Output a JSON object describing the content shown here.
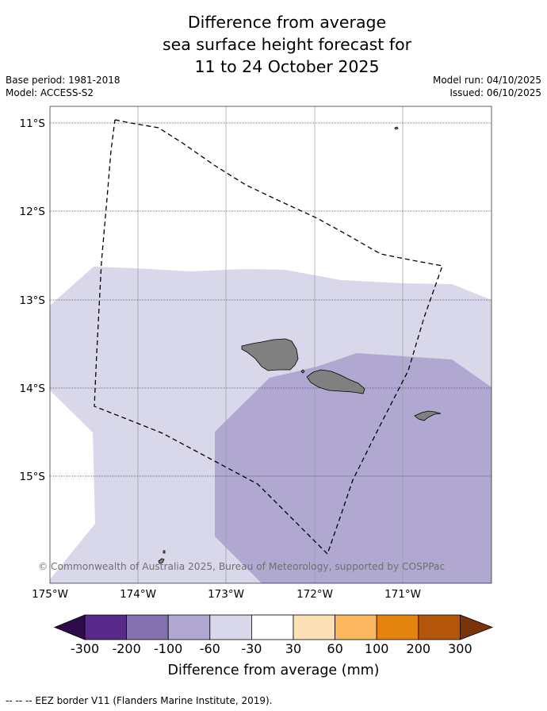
{
  "title": [
    "Difference from average",
    "sea surface height forecast for",
    "11 to 24 October 2025"
  ],
  "base_period": "Base period: 1981-2018",
  "model": "Model: ACCESS-S2",
  "model_run": "Model run: 04/10/2025",
  "issued": "Issued: 06/10/2025",
  "copyright": "© Commonwealth of Australia 2025, Bureau of Meteorology, supported by COSPPac",
  "footer": "--  --  -- EEZ border V11 (Flanders Marine Institute, 2019).",
  "map": {
    "lat_labels": [
      "11°S",
      "12°S",
      "13°S",
      "14°S",
      "15°S"
    ],
    "lon_labels": [
      "175°W",
      "174°W",
      "173°W",
      "172°W",
      "171°W"
    ]
  },
  "colorbar": {
    "title": "Difference from average (mm)",
    "tick_labels": [
      "-300",
      "-200",
      "-100",
      "-60",
      "-30",
      "30",
      "60",
      "100",
      "200",
      "300"
    ],
    "colors": [
      "#2d0b4b",
      "#5a2a8a",
      "#8472ae",
      "#b0a8d1",
      "#d8d8ea",
      "#ffffff",
      "#fde1b6",
      "#fbb75e",
      "#e3840f",
      "#b4560a",
      "#7b3308"
    ]
  },
  "colors": {
    "band_light": "#d8d8ea",
    "band_medium": "#b0a8d1",
    "land": "#808080"
  }
}
